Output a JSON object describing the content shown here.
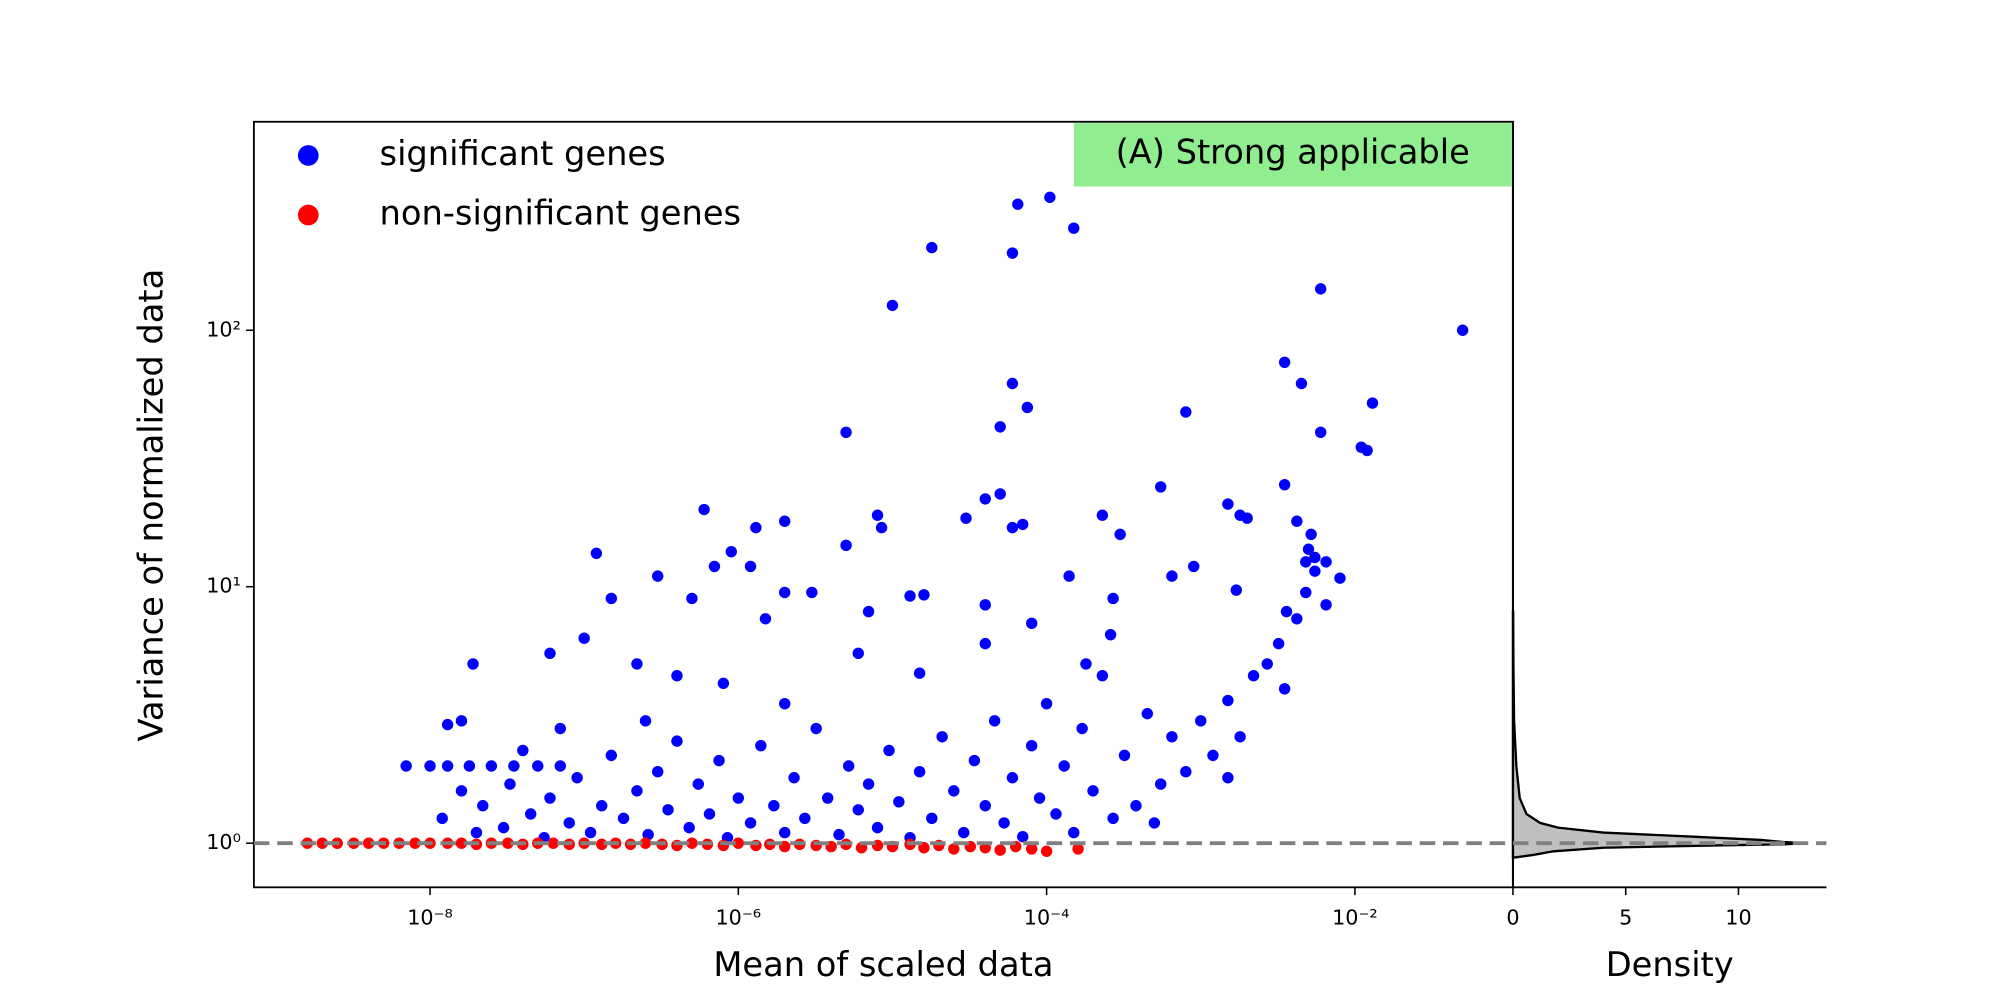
{
  "chart_data": [
    {
      "type": "scatter",
      "xlabel": "Mean of scaled data",
      "ylabel": "Variance of normalized data",
      "xscale": "log",
      "yscale": "log",
      "xlim": [
        7.2e-10,
        0.106
      ],
      "ylim": [
        0.673,
        650
      ],
      "xticks": [
        {
          "value": 1e-08,
          "label": "10⁻⁸"
        },
        {
          "value": 1e-06,
          "label": "10⁻⁶"
        },
        {
          "value": 0.0001,
          "label": "10⁻⁴"
        },
        {
          "value": 0.01,
          "label": "10⁻²"
        }
      ],
      "yticks": [
        {
          "value": 1,
          "label": "10⁰"
        },
        {
          "value": 10,
          "label": "10¹"
        },
        {
          "value": 100,
          "label": "10²"
        }
      ],
      "legend": "upper left",
      "annotation": "(A) Strong applicable",
      "annotation_color": "#90ee90",
      "hline": 1,
      "hline_color": "#808080",
      "series": [
        {
          "name": "significant genes",
          "color": "#0000ff",
          "x": [
            7e-09,
            1e-08,
            1.3e-08,
            1.8e-08,
            2.5e-08,
            3.5e-08,
            5e-08,
            7e-08,
            1.2e-08,
            1.6e-08,
            2e-08,
            2.2e-08,
            3e-08,
            3.3e-08,
            4.5e-08,
            5.5e-08,
            6e-08,
            8e-08,
            9e-08,
            1.1e-07,
            1.3e-07,
            1.5e-07,
            1.8e-07,
            2.2e-07,
            2.6e-07,
            3e-07,
            3.5e-07,
            4e-07,
            4.8e-07,
            5.5e-07,
            6.5e-07,
            7.5e-07,
            8.5e-07,
            1e-06,
            1.2e-06,
            1.4e-06,
            1.7e-06,
            2e-06,
            2.3e-06,
            2.7e-06,
            3.2e-06,
            3.8e-06,
            4.5e-06,
            5.2e-06,
            6e-06,
            7e-06,
            8e-06,
            9.5e-06,
            1.1e-05,
            1.3e-05,
            1.5e-05,
            1.8e-05,
            2.1e-05,
            2.5e-05,
            2.9e-05,
            3.4e-05,
            4e-05,
            4.6e-05,
            5.3e-05,
            6e-05,
            7e-05,
            8e-05,
            9e-05,
            0.0001,
            0.000115,
            0.00013,
            0.00015,
            0.00017,
            0.0002,
            0.00023,
            0.00027,
            0.00032,
            0.00038,
            0.00045,
            0.00055,
            0.00065,
            0.0008,
            0.001,
            0.0012,
            0.0015,
            0.0018,
            0.0022,
            0.0027,
            0.0032,
            0.0036,
            0.0042,
            0.0048,
            0.0055,
            0.0065,
            0.0035,
            0.0015,
            0.0005,
            0.00026,
            0.00018,
            8e-05,
            4e-05,
            1.5e-05,
            6e-06,
            2e-06,
            8e-07,
            2.5e-07,
            7e-08,
            4e-08,
            1.9e-08,
            1.6e-08,
            1.3e-08,
            1.8e-05,
            1e-05,
            6.5e-05,
            0.000105,
            0.00015,
            6e-05,
            0.006,
            0.05,
            6e-05,
            7.5e-05,
            5e-06,
            5e-05,
            0.0035,
            0.0045,
            0.006,
            0.013,
            0.011,
            0.012,
            0.0008,
            6e-07,
            8e-06,
            8.5e-06,
            2e-06,
            1.3e-06,
            4e-05,
            5e-05,
            6e-05,
            7e-05,
            3e-05,
            0.00023,
            0.0003,
            0.00055,
            0.0015,
            0.0018,
            0.0035,
            0.002,
            0.0042,
            1.2e-07,
            1.5e-07,
            3e-07,
            5e-07,
            7e-07,
            9e-07,
            1.2e-06,
            1.5e-06,
            2e-06,
            3e-06,
            5e-06,
            7e-06,
            1.3e-05,
            1.6e-05,
            4e-05,
            0.00014,
            0.00027,
            0.00065,
            0.0009,
            0.0017,
            0.0048,
            0.0055,
            0.0065,
            0.008,
            0.005,
            0.0052,
            6e-08,
            1e-07,
            2.2e-07,
            4e-07
          ],
          "values": [
            2.0,
            2.0,
            2.0,
            2.0,
            2.0,
            2.0,
            2.0,
            2.0,
            1.25,
            1.6,
            1.1,
            1.4,
            1.15,
            1.7,
            1.3,
            1.05,
            1.5,
            1.2,
            1.8,
            1.1,
            1.4,
            2.2,
            1.25,
            1.6,
            1.08,
            1.9,
            1.35,
            2.5,
            1.15,
            1.7,
            1.3,
            2.1,
            1.05,
            1.5,
            1.2,
            2.4,
            1.4,
            1.1,
            1.8,
            1.25,
            2.8,
            1.5,
            1.08,
            2.0,
            1.35,
            1.7,
            1.15,
            2.3,
            1.45,
            1.05,
            1.9,
            1.25,
            2.6,
            1.6,
            1.1,
            2.1,
            1.4,
            3.0,
            1.2,
            1.8,
            1.06,
            2.4,
            1.5,
            3.5,
            1.3,
            2.0,
            1.1,
            2.8,
            1.6,
            4.5,
            1.25,
            2.2,
            1.4,
            3.2,
            1.7,
            2.6,
            1.9,
            3.0,
            2.2,
            3.6,
            2.6,
            4.5,
            5.0,
            6.0,
            8.0,
            7.5,
            9.5,
            11.5,
            8.5,
            4.0,
            1.8,
            1.2,
            6.5,
            5.0,
            7.2,
            6.0,
            4.6,
            5.5,
            3.5,
            4.2,
            3.0,
            2.8,
            2.3,
            5.0,
            3.0,
            2.9,
            210,
            125,
            310,
            330,
            250,
            200,
            145,
            100,
            62,
            50,
            40,
            42,
            75,
            62,
            40,
            52,
            35,
            34,
            48,
            20,
            19,
            17,
            18,
            17,
            22,
            23,
            17,
            17.5,
            18.5,
            19,
            16,
            24.5,
            21,
            19,
            25,
            18.5,
            18,
            13.5,
            9,
            11,
            9,
            12,
            13.7,
            12,
            7.5,
            9.5,
            9.5,
            14.5,
            8,
            9.2,
            9.3,
            8.5,
            11,
            9,
            11,
            12,
            9.7,
            12.5,
            13,
            12.5,
            10.8,
            14,
            16,
            5.5,
            6.3,
            5,
            4.5
          ]
        },
        {
          "name": "non-significant genes",
          "color": "#ff0000",
          "x": [
            1.6e-09,
            2e-09,
            2.5e-09,
            3.2e-09,
            4e-09,
            5e-09,
            6.3e-09,
            8e-09,
            1e-08,
            1.3e-08,
            1.6e-08,
            2e-08,
            2.5e-08,
            3.2e-08,
            4e-08,
            5e-08,
            6.3e-08,
            8e-08,
            1e-07,
            1.3e-07,
            1.6e-07,
            2e-07,
            2.5e-07,
            3.2e-07,
            4e-07,
            5e-07,
            6.3e-07,
            8e-07,
            1e-06,
            1.3e-06,
            1.6e-06,
            2e-06,
            2.5e-06,
            3.2e-06,
            4e-06,
            5e-06,
            6.3e-06,
            8e-06,
            1e-05,
            1.3e-05,
            1.6e-05,
            2e-05,
            2.5e-05,
            3.2e-05,
            4e-05,
            5e-05,
            6.3e-05,
            8e-05,
            0.0001,
            0.00016
          ],
          "values": [
            1,
            1,
            1,
            1,
            1,
            1,
            1,
            1,
            1,
            1,
            1,
            0.99,
            1,
            1,
            0.99,
            1,
            1,
            0.99,
            1,
            0.99,
            1,
            0.99,
            1,
            0.99,
            0.98,
            1,
            0.99,
            0.98,
            1,
            0.98,
            0.99,
            0.97,
            0.99,
            0.98,
            0.97,
            0.99,
            0.96,
            0.98,
            0.97,
            0.99,
            0.96,
            0.98,
            0.95,
            0.97,
            0.96,
            0.94,
            0.97,
            0.95,
            0.93,
            0.95
          ]
        }
      ]
    },
    {
      "type": "density",
      "xlabel": "Density",
      "yscale": "log",
      "xlim": [
        0,
        13.9
      ],
      "xticks": [
        0,
        5,
        10
      ],
      "ylim": [
        0.673,
        650
      ],
      "color": "#c0c0c0",
      "line_color": "#000000",
      "y": [
        0.88,
        0.9,
        0.93,
        0.96,
        0.98,
        0.99,
        1.0,
        1.01,
        1.03,
        1.06,
        1.1,
        1.15,
        1.2,
        1.3,
        1.5,
        2.0,
        3,
        5,
        8
      ],
      "values": [
        0.1,
        0.9,
        1.8,
        4,
        9,
        12,
        13,
        12,
        11,
        8,
        4,
        2,
        1.2,
        0.6,
        0.3,
        0.15,
        0.05,
        0.02,
        0.01
      ]
    }
  ]
}
